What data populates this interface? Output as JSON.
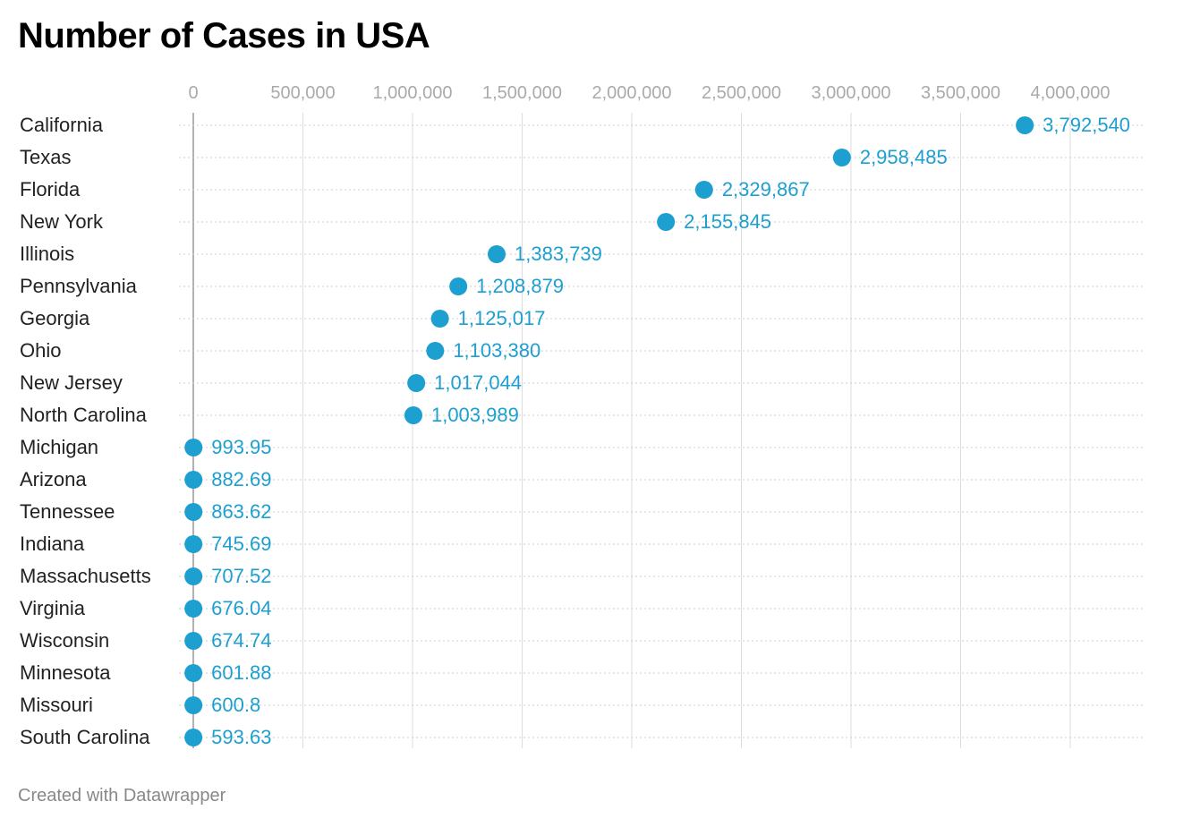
{
  "title": "Number of Cases in USA",
  "footer": "Created with Datawrapper",
  "colors": {
    "dot": "#1d9fd0",
    "value_label": "#1d9fd0",
    "tick_label": "#aaaaaa",
    "gridline": "#dddddd",
    "baseline": "#999999",
    "category_label": "#222222",
    "row_rule": "#cccccc"
  },
  "chart_data": {
    "type": "scatter",
    "orientation": "horizontal-dot",
    "x_ticks": [
      0,
      500000,
      1000000,
      1500000,
      2000000,
      2500000,
      3000000,
      3500000,
      4000000
    ],
    "x_tick_labels": [
      "0",
      "500,000",
      "1,000,000",
      "1,500,000",
      "2,000,000",
      "2,500,000",
      "3,000,000",
      "3,500,000",
      "4,000,000"
    ],
    "xlim": [
      0,
      4000000
    ],
    "grid": true,
    "categories": [
      "California",
      "Texas",
      "Florida",
      "New York",
      "Illinois",
      "Pennsylvania",
      "Georgia",
      "Ohio",
      "New Jersey",
      "North Carolina",
      "Michigan",
      "Arizona",
      "Tennessee",
      "Indiana",
      "Massachusetts",
      "Virginia",
      "Wisconsin",
      "Minnesota",
      "Missouri",
      "South Carolina"
    ],
    "values": [
      3792540,
      2958485,
      2329867,
      2155845,
      1383739,
      1208879,
      1125017,
      1103380,
      1017044,
      1003989,
      993.95,
      882.69,
      863.62,
      745.69,
      707.52,
      676.04,
      674.74,
      601.88,
      600.8,
      593.63
    ],
    "value_labels": [
      "3,792,540",
      "2,958,485",
      "2,329,867",
      "2,155,845",
      "1,383,739",
      "1,208,879",
      "1,125,017",
      "1,103,380",
      "1,017,044",
      "1,003,989",
      "993.95",
      "882.69",
      "863.62",
      "745.69",
      "707.52",
      "676.04",
      "674.74",
      "601.88",
      "600.8",
      "593.63"
    ]
  }
}
